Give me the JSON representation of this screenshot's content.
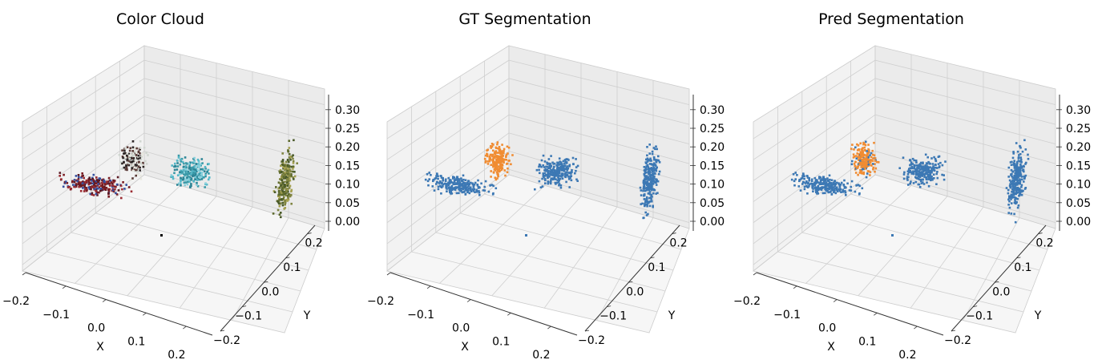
{
  "colors": {
    "blue": "#3c78b4",
    "orange": "#f08c32"
  },
  "chart_data": [
    {
      "type": "scatter3d",
      "title": "Color Cloud",
      "xlabel": "X",
      "ylabel": "Y",
      "zlabel": "",
      "x_ticks": [
        "−0.2",
        "−0.1",
        "0.0",
        "0.1",
        "0.2"
      ],
      "y_ticks": [
        "−0.2",
        "−0.1",
        "0.0",
        "0.1",
        "0.2"
      ],
      "z_ticks": [
        "0.00",
        "0.05",
        "0.10",
        "0.15",
        "0.20",
        "0.25",
        "0.30"
      ],
      "coloring": "rgb",
      "grid": true
    },
    {
      "type": "scatter3d",
      "title": "GT Segmentation",
      "xlabel": "X",
      "ylabel": "Y",
      "zlabel": "",
      "x_ticks": [
        "−0.2",
        "−0.1",
        "0.0",
        "0.1",
        "0.2"
      ],
      "y_ticks": [
        "−0.2",
        "−0.1",
        "0.0",
        "0.1",
        "0.2"
      ],
      "z_ticks": [
        "0.00",
        "0.05",
        "0.10",
        "0.15",
        "0.20",
        "0.25",
        "0.30"
      ],
      "coloring": "segmentation",
      "grid": true
    },
    {
      "type": "scatter3d",
      "title": "Pred Segmentation",
      "xlabel": "X",
      "ylabel": "Y",
      "zlabel": "",
      "x_ticks": [
        "−0.2",
        "−0.1",
        "0.0",
        "0.1",
        "0.2"
      ],
      "y_ticks": [
        "−0.2",
        "−0.1",
        "0.0",
        "0.1",
        "0.2"
      ],
      "z_ticks": [
        "0.00",
        "0.05",
        "0.10",
        "0.15",
        "0.20",
        "0.25",
        "0.30"
      ],
      "coloring": "segmentation",
      "grid": true
    }
  ]
}
